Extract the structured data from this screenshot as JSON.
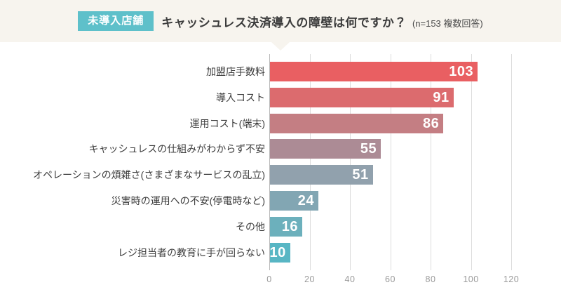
{
  "header": {
    "badge": "未導入店舗",
    "title": "キャッシュレス決済導入の障壁は何ですか？",
    "note": "(n=153 複数回答)"
  },
  "chart_data": {
    "type": "bar",
    "orientation": "horizontal",
    "title": "キャッシュレス決済導入の障壁は何ですか？",
    "sample_note": "n=153 複数回答",
    "categories": [
      "加盟店手数料",
      "導入コスト",
      "運用コスト(端末)",
      "キャッシュレスの仕組みがわからず不安",
      "オペレーションの煩雑さ(さまざまなサービスの乱立)",
      "災害時の運用への不安(停電時など)",
      "その他",
      "レジ担当者の教育に手が回らない"
    ],
    "values": [
      103,
      91,
      86,
      55,
      51,
      24,
      16,
      10
    ],
    "bar_colors": [
      "#e95f62",
      "#dc6b6e",
      "#c47e83",
      "#ac8b95",
      "#91a1ad",
      "#82a6b3",
      "#6cb0bc",
      "#58b6c4"
    ],
    "value_label_color": "#ffffff",
    "x_ticks": [
      0,
      20,
      40,
      60,
      80,
      100,
      120
    ],
    "xlim": [
      0,
      140
    ],
    "grid": "vertical",
    "legend": false
  },
  "colors": {
    "header_bg": "#f7f4ee",
    "badge_bg": "#5ec0ca",
    "gridline": "#dcdcdc",
    "axis_zero_line": "#b9b9b9",
    "tick_text": "#9a9a9a",
    "label_text": "#3c3c3c"
  }
}
